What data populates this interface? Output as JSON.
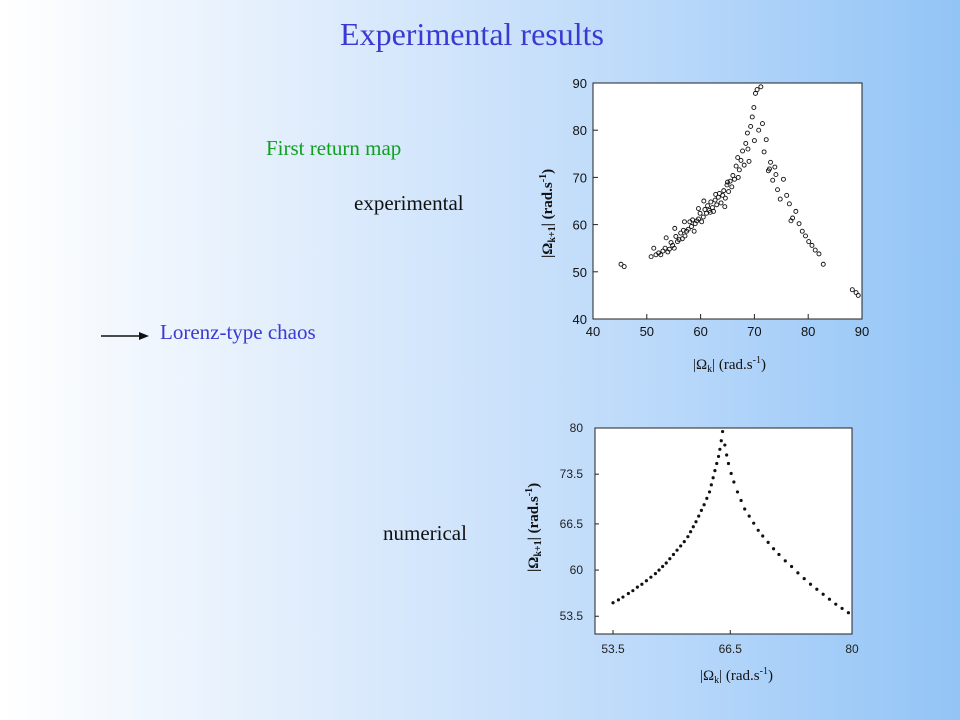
{
  "slide": {
    "title": "Experimental results",
    "subtitle": "First return map",
    "label_experimental": "experimental",
    "label_numerical": "numerical",
    "arrow_text": "Lorenz-type chaos",
    "title_color": "#3a3ad2",
    "subtitle_color": "#10a020"
  },
  "axis_labels": {
    "x_main": "|Ω",
    "x_sub": "k",
    "x_unit": "| (rad.s",
    "x_sup": "-1",
    "x_close": ")",
    "y_main": "|Ω",
    "y_sub": "k+1",
    "y_unit": "| (rad.s",
    "y_sup": "-1",
    "y_close": ")"
  },
  "chart_data": [
    {
      "type": "scatter",
      "title": "",
      "xlim": [
        40,
        90
      ],
      "ylim": [
        40,
        90
      ],
      "xticks": [
        40,
        50,
        60,
        70,
        80,
        90
      ],
      "yticks": [
        40,
        50,
        60,
        70,
        80,
        90
      ],
      "marker": "open-circle",
      "points": [
        [
          45.2,
          51.6
        ],
        [
          45.8,
          51.1
        ],
        [
          50.8,
          53.2
        ],
        [
          51.3,
          55.0
        ],
        [
          51.7,
          53.6
        ],
        [
          52.2,
          54.0
        ],
        [
          52.6,
          53.6
        ],
        [
          53.0,
          54.4
        ],
        [
          53.4,
          55.0
        ],
        [
          53.6,
          57.2
        ],
        [
          53.9,
          54.2
        ],
        [
          54.2,
          54.8
        ],
        [
          54.5,
          56.2
        ],
        [
          54.8,
          55.6
        ],
        [
          55.1,
          55.0
        ],
        [
          55.4,
          57.5
        ],
        [
          55.7,
          56.4
        ],
        [
          56.0,
          56.8
        ],
        [
          56.3,
          58.2
        ],
        [
          56.6,
          57.0
        ],
        [
          56.8,
          58.8
        ],
        [
          57.1,
          57.6
        ],
        [
          57.4,
          58.6
        ],
        [
          57.7,
          59.0
        ],
        [
          58.0,
          60.6
        ],
        [
          58.3,
          59.6
        ],
        [
          58.5,
          61.0
        ],
        [
          58.8,
          58.6
        ],
        [
          59.0,
          60.2
        ],
        [
          59.3,
          60.8
        ],
        [
          59.6,
          61.2
        ],
        [
          59.9,
          62.4
        ],
        [
          60.2,
          60.6
        ],
        [
          60.5,
          61.6
        ],
        [
          60.8,
          63.2
        ],
        [
          61.1,
          62.4
        ],
        [
          61.3,
          64.0
        ],
        [
          61.6,
          63.0
        ],
        [
          61.9,
          64.8
        ],
        [
          62.2,
          63.6
        ],
        [
          62.4,
          62.8
        ],
        [
          62.7,
          65.2
        ],
        [
          63.0,
          64.2
        ],
        [
          63.3,
          65.8
        ],
        [
          63.5,
          66.6
        ],
        [
          63.8,
          64.6
        ],
        [
          64.1,
          66.2
        ],
        [
          64.3,
          67.2
        ],
        [
          64.6,
          65.6
        ],
        [
          64.9,
          68.4
        ],
        [
          65.2,
          67.0
        ],
        [
          65.5,
          69.2
        ],
        [
          65.8,
          68.0
        ],
        [
          66.0,
          70.4
        ],
        [
          66.3,
          69.6
        ],
        [
          66.6,
          72.4
        ],
        [
          66.9,
          74.2
        ],
        [
          67.2,
          71.6
        ],
        [
          67.5,
          73.6
        ],
        [
          67.8,
          75.6
        ],
        [
          68.1,
          72.6
        ],
        [
          68.4,
          77.2
        ],
        [
          68.7,
          79.4
        ],
        [
          69.0,
          73.4
        ],
        [
          69.3,
          80.8
        ],
        [
          69.6,
          82.8
        ],
        [
          69.9,
          84.8
        ],
        [
          70.2,
          87.8
        ],
        [
          70.5,
          88.6
        ],
        [
          70.8,
          80.0
        ],
        [
          71.2,
          89.2
        ],
        [
          71.5,
          81.4
        ],
        [
          71.8,
          75.4
        ],
        [
          72.2,
          78.0
        ],
        [
          72.6,
          71.4
        ],
        [
          73.0,
          73.2
        ],
        [
          73.4,
          69.4
        ],
        [
          73.8,
          72.2
        ],
        [
          74.3,
          67.4
        ],
        [
          74.8,
          65.4
        ],
        [
          75.4,
          69.6
        ],
        [
          76.0,
          66.2
        ],
        [
          76.5,
          64.4
        ],
        [
          77.1,
          61.4
        ],
        [
          77.7,
          62.8
        ],
        [
          78.3,
          60.2
        ],
        [
          78.9,
          58.6
        ],
        [
          79.5,
          57.6
        ],
        [
          80.1,
          56.4
        ],
        [
          80.7,
          55.6
        ],
        [
          81.3,
          54.6
        ],
        [
          82.0,
          53.8
        ],
        [
          82.8,
          51.6
        ],
        [
          55.2,
          59.2
        ],
        [
          57.0,
          60.6
        ],
        [
          59.6,
          63.4
        ],
        [
          61.8,
          62.6
        ],
        [
          64.5,
          63.8
        ],
        [
          67.0,
          70.0
        ],
        [
          60.6,
          65.0
        ],
        [
          62.8,
          66.4
        ],
        [
          65.0,
          69.0
        ],
        [
          68.8,
          76.0
        ],
        [
          70.0,
          77.8
        ],
        [
          72.8,
          71.8
        ],
        [
          74.0,
          70.6
        ],
        [
          76.8,
          60.8
        ],
        [
          88.2,
          46.2
        ],
        [
          88.9,
          45.6
        ],
        [
          89.3,
          45.0
        ]
      ]
    },
    {
      "type": "scatter",
      "title": "",
      "xlim": [
        51.5,
        80
      ],
      "ylim": [
        51,
        80
      ],
      "xticks": [
        53.5,
        66.5,
        80
      ],
      "yticks": [
        53.5,
        60,
        66.5,
        73.5,
        80
      ],
      "marker": "filled-dot",
      "left_branch": [
        [
          53.5,
          55.4
        ],
        [
          54.1,
          55.8
        ],
        [
          54.6,
          56.2
        ],
        [
          55.2,
          56.7
        ],
        [
          55.7,
          57.1
        ],
        [
          56.2,
          57.6
        ],
        [
          56.7,
          58.0
        ],
        [
          57.2,
          58.5
        ],
        [
          57.7,
          59.0
        ],
        [
          58.2,
          59.5
        ],
        [
          58.6,
          60.0
        ],
        [
          59.0,
          60.5
        ],
        [
          59.4,
          61.0
        ],
        [
          59.8,
          61.6
        ],
        [
          60.2,
          62.2
        ],
        [
          60.6,
          62.8
        ],
        [
          61.0,
          63.4
        ],
        [
          61.4,
          64.0
        ],
        [
          61.8,
          64.7
        ],
        [
          62.1,
          65.4
        ],
        [
          62.4,
          66.1
        ],
        [
          62.7,
          66.8
        ],
        [
          63.0,
          67.6
        ],
        [
          63.3,
          68.4
        ],
        [
          63.6,
          69.2
        ],
        [
          63.9,
          70.1
        ],
        [
          64.2,
          71.0
        ],
        [
          64.4,
          72.0
        ],
        [
          64.6,
          73.0
        ],
        [
          64.8,
          74.0
        ],
        [
          65.0,
          75.0
        ],
        [
          65.2,
          76.0
        ],
        [
          65.35,
          77.0
        ],
        [
          65.5,
          78.2
        ],
        [
          65.65,
          79.5
        ]
      ],
      "right_branch": [
        [
          65.9,
          77.6
        ],
        [
          66.1,
          76.2
        ],
        [
          66.3,
          75.0
        ],
        [
          66.6,
          73.6
        ],
        [
          66.9,
          72.4
        ],
        [
          67.3,
          71.0
        ],
        [
          67.7,
          69.8
        ],
        [
          68.1,
          68.6
        ],
        [
          68.6,
          67.6
        ],
        [
          69.1,
          66.6
        ],
        [
          69.6,
          65.6
        ],
        [
          70.1,
          64.8
        ],
        [
          70.7,
          63.9
        ],
        [
          71.3,
          63.0
        ],
        [
          71.9,
          62.2
        ],
        [
          72.6,
          61.3
        ],
        [
          73.3,
          60.5
        ],
        [
          74.0,
          59.6
        ],
        [
          74.7,
          58.8
        ],
        [
          75.4,
          58.0
        ],
        [
          76.1,
          57.3
        ],
        [
          76.8,
          56.6
        ],
        [
          77.5,
          55.9
        ],
        [
          78.2,
          55.2
        ],
        [
          78.9,
          54.6
        ],
        [
          79.6,
          54.0
        ]
      ]
    }
  ]
}
